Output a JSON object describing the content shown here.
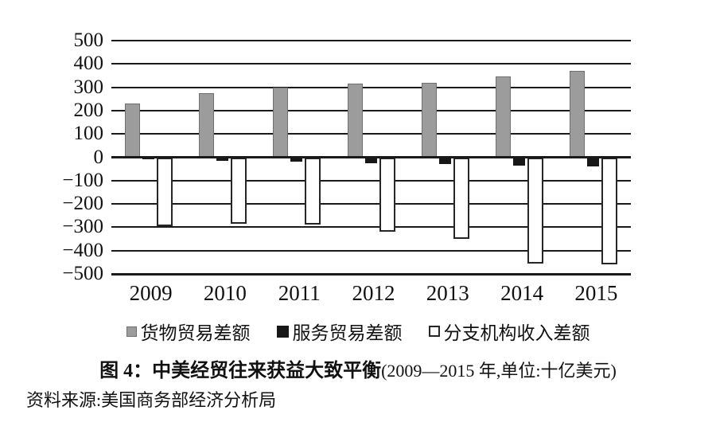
{
  "chart_data": {
    "type": "bar",
    "title": "图 4：中美经贸往来获益大致平衡(2009—2015 年,单位:十亿美元)",
    "title_prefix_bold": "图 4：",
    "title_main_bold": "中美经贸往来获益大致平衡",
    "title_note": "(2009—2015 年,单位:十亿美元)",
    "unit": "十亿美元",
    "source_note": "资料来源:美国商务部经济分析局",
    "categories": [
      "2009",
      "2010",
      "2011",
      "2012",
      "2013",
      "2014",
      "2015"
    ],
    "series": [
      {
        "name": "货物贸易差额",
        "key": "goods-trade-balance",
        "color": "#9c9c9c",
        "border_color": "#6f6f6f",
        "values": [
          230,
          275,
          300,
          315,
          320,
          345,
          370
        ]
      },
      {
        "name": "服务贸易差额",
        "key": "services-trade-balance",
        "color": "#171717",
        "border_color": "#171717",
        "values": [
          -10,
          -15,
          -20,
          -25,
          -30,
          -35,
          -40
        ]
      },
      {
        "name": "分支机构收入差额",
        "key": "branch-income-balance",
        "color": "#ffffff",
        "border_color": "#262626",
        "values": [
          -295,
          -285,
          -290,
          -320,
          -350,
          -455,
          -460
        ]
      }
    ],
    "yticks": [
      500,
      400,
      300,
      200,
      100,
      0,
      -100,
      -200,
      -300,
      -400,
      -500
    ],
    "ylim": [
      -500,
      500
    ],
    "grid": true,
    "legend_position": "bottom",
    "axis_color": "#1a1a1a"
  }
}
